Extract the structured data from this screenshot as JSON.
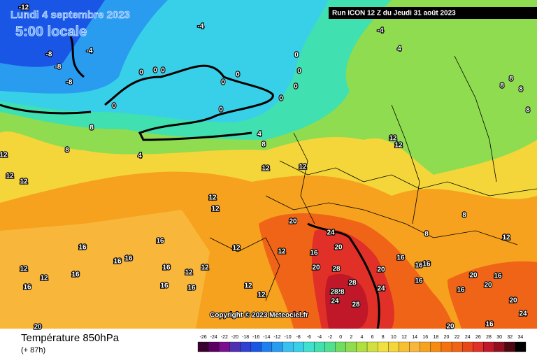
{
  "header": {
    "date": "Lundi 4 septembre 2023",
    "time": "5:00 locale",
    "run": "Run ICON 12 Z du Jeudi 31 août 2023",
    "copyright": "Copyright © 2023 Meteociel.fr"
  },
  "legend": {
    "title": "Température 850hPa",
    "lead": "(+ 87h)",
    "scale": [
      -26,
      -24,
      -22,
      -20,
      -18,
      -16,
      -14,
      -12,
      -10,
      -8,
      -6,
      -4,
      -2,
      0,
      2,
      4,
      6,
      8,
      10,
      12,
      14,
      16,
      18,
      20,
      22,
      24,
      26,
      28,
      30,
      32,
      34
    ]
  },
  "contour_labels": [
    -12,
    -4,
    -4,
    -8,
    -8,
    -8,
    0,
    0,
    0,
    0,
    0,
    0,
    0,
    0,
    0,
    0,
    0,
    -4,
    4,
    4,
    8,
    8,
    8,
    4,
    8,
    8,
    8,
    8,
    12,
    12,
    12,
    12,
    12,
    12,
    12,
    12,
    12,
    12,
    12,
    12,
    12,
    12,
    12,
    12,
    16,
    16,
    16,
    16,
    16,
    16,
    16,
    16,
    16,
    12,
    12,
    16,
    16,
    16,
    16,
    16,
    16,
    16,
    16,
    20,
    24,
    20,
    28,
    20,
    20,
    28,
    24,
    28,
    28,
    24,
    28,
    20,
    20,
    20,
    24,
    20,
    20,
    8,
    8
  ]
}
